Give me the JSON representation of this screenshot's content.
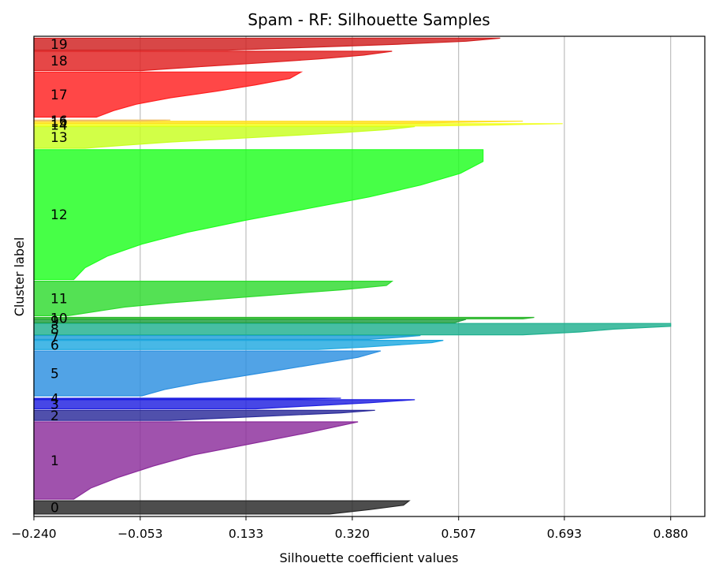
{
  "chart_data": {
    "type": "area",
    "title": "Spam - RF: Silhouette Samples",
    "xlabel": "Silhouette coefficient values",
    "ylabel": "Cluster label",
    "xlim": [
      -0.24,
      0.94
    ],
    "x_ticks": [
      -0.24,
      -0.053,
      0.133,
      0.32,
      0.507,
      0.693,
      0.88
    ],
    "x_tick_labels": [
      "−0.240",
      "−0.053",
      "0.133",
      "0.320",
      "0.507",
      "0.693",
      "0.880"
    ],
    "grid": "vertical",
    "clusters": [
      {
        "label": "0",
        "color": "#262626",
        "y_start": 0,
        "y_end": 55,
        "profile": [
          0.42,
          0.41,
          0.35,
          0.28
        ]
      },
      {
        "label": "1",
        "color": "#8b2c9b",
        "y_start": 62,
        "y_end": 382,
        "profile": [
          0.33,
          0.24,
          0.14,
          0.04,
          -0.03,
          -0.09,
          -0.14,
          -0.17
        ]
      },
      {
        "label": "2",
        "color": "#2a2a9a",
        "y_start": 388,
        "y_end": 430,
        "profile": [
          0.36,
          0.3,
          0.2,
          0.1,
          0.0
        ]
      },
      {
        "label": "3",
        "color": "#1f1fe0",
        "y_start": 436,
        "y_end": 474,
        "profile": [
          0.43,
          0.35,
          0.25,
          0.15
        ]
      },
      {
        "label": "4",
        "color": "#1f1fe0",
        "y_start": 476,
        "y_end": 480,
        "profile": [
          0.3,
          0.2
        ]
      },
      {
        "label": "5",
        "color": "#2b8fe0",
        "y_start": 490,
        "y_end": 676,
        "profile": [
          0.37,
          0.33,
          0.26,
          0.19,
          0.12,
          0.05,
          -0.01,
          -0.05
        ]
      },
      {
        "label": "6",
        "color": "#1fa8e0",
        "y_start": 682,
        "y_end": 720,
        "profile": [
          0.48,
          0.46,
          0.4,
          0.34,
          0.26
        ]
      },
      {
        "label": "7",
        "color": "#1f9fd8",
        "y_start": 724,
        "y_end": 740,
        "profile": [
          0.44,
          0.4,
          0.35
        ]
      },
      {
        "label": "8",
        "color": "#1fb08f",
        "y_start": 743,
        "y_end": 790,
        "profile": [
          0.88,
          0.88,
          0.78,
          0.72,
          0.62
        ]
      },
      {
        "label": "9",
        "color": "#1f9f3f",
        "y_start": 793,
        "y_end": 807,
        "profile": [
          0.52,
          0.51,
          0.5
        ]
      },
      {
        "label": "10",
        "color": "#2fb82f",
        "y_start": 809,
        "y_end": 815,
        "profile": [
          0.64,
          0.62
        ]
      },
      {
        "label": "11",
        "color": "#2edb2e",
        "y_start": 822,
        "y_end": 965,
        "profile": [
          0.39,
          0.38,
          0.3,
          0.2,
          0.1,
          0.0,
          -0.08,
          -0.13,
          -0.18
        ]
      },
      {
        "label": "12",
        "color": "#1fff1f",
        "y_start": 972,
        "y_end": 1510,
        "profile": [
          0.55,
          0.55,
          0.51,
          0.44,
          0.35,
          0.24,
          0.13,
          0.03,
          -0.05,
          -0.11,
          -0.15,
          -0.17
        ]
      },
      {
        "label": "13",
        "color": "#c8ff1f",
        "y_start": 1516,
        "y_end": 1606,
        "profile": [
          0.43,
          0.38,
          0.3,
          0.2,
          0.1,
          0.0,
          -0.08,
          -0.15
        ]
      },
      {
        "label": "14",
        "color": "#f0ff1f",
        "y_start": 1608,
        "y_end": 1618,
        "profile": [
          0.69,
          0.62,
          0.55,
          0.45
        ]
      },
      {
        "label": "15",
        "color": "#ffe01f",
        "y_start": 1619,
        "y_end": 1628,
        "profile": [
          0.62,
          0.5,
          0.4
        ]
      },
      {
        "label": "16",
        "color": "#f0c06a",
        "y_start": 1629,
        "y_end": 1633,
        "profile": [
          0.0,
          -0.05
        ]
      },
      {
        "label": "17",
        "color": "#ff1f1f",
        "y_start": 1645,
        "y_end": 1832,
        "profile": [
          0.23,
          0.21,
          0.15,
          0.08,
          0.0,
          -0.06,
          -0.1,
          -0.13
        ]
      },
      {
        "label": "18",
        "color": "#e01f1f",
        "y_start": 1838,
        "y_end": 1918,
        "profile": [
          0.39,
          0.34,
          0.26,
          0.16,
          0.05,
          -0.05
        ]
      },
      {
        "label": "19",
        "color": "#d01f1f",
        "y_start": 1922,
        "y_end": 1972,
        "profile": [
          0.58,
          0.52,
          0.4,
          0.25,
          0.1
        ]
      }
    ],
    "ylim": [
      -10,
      1980
    ]
  }
}
